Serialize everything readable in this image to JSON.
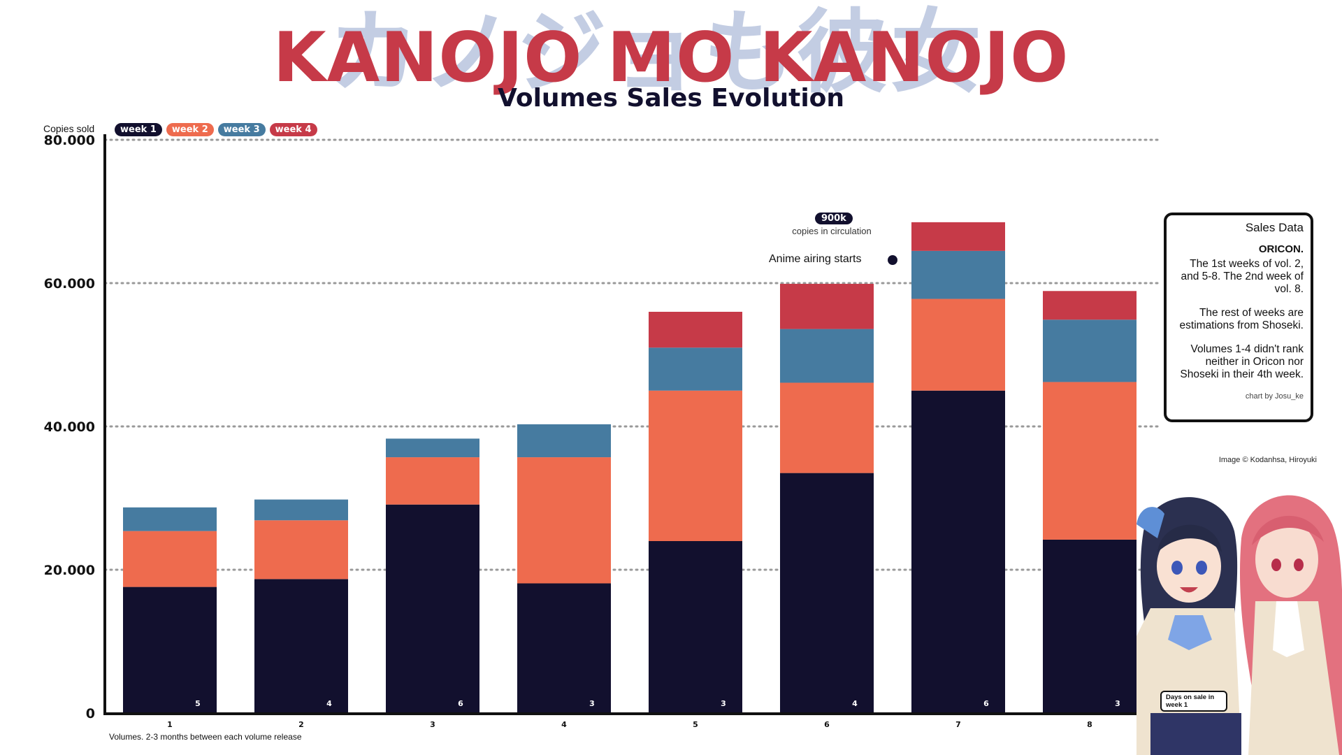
{
  "header": {
    "bg_text": "カノジョも彼女",
    "title": "KANOJO MO KANOJO",
    "subtitle": "Volumes Sales Evolution"
  },
  "axis": {
    "y_title": "Copies sold",
    "x_title": "Volumes. 2-3 months between each volume release"
  },
  "legend": [
    {
      "label": "week 1",
      "color": "#12102e"
    },
    {
      "label": "week 2",
      "color": "#ee6b4e"
    },
    {
      "label": "week 3",
      "color": "#467ba0"
    },
    {
      "label": "week 4",
      "color": "#c63a48"
    }
  ],
  "annotation": {
    "circulation_pill": "900k",
    "circulation_text": "copies in circulation",
    "anime_text": "Anime airing starts"
  },
  "info_box": {
    "heading": "Sales Data",
    "source": "ORICON.",
    "para1": "The 1st weeks of vol. 2, and 5-8. The 2nd week of vol. 8.",
    "para2": "The rest of weeks are estimations from Shoseki.",
    "para3": "Volumes 1-4 didn't rank neither in Oricon nor Shoseki in their 4th week.",
    "credit": "chart by Josu_ke"
  },
  "copyright": "Image © Kodanhsa, Hiroyuki",
  "days_note": "Days on sale in week 1",
  "chart_data": {
    "type": "bar",
    "stacked": true,
    "categories": [
      "1",
      "2",
      "3",
      "4",
      "5",
      "6",
      "7",
      "8"
    ],
    "series": [
      {
        "name": "week 1",
        "values": [
          17600,
          18700,
          29100,
          18100,
          24000,
          33500,
          45000,
          24200
        ]
      },
      {
        "name": "week 2",
        "values": [
          7800,
          8200,
          6600,
          17600,
          21000,
          12600,
          12800,
          22000
        ]
      },
      {
        "name": "week 3",
        "values": [
          3300,
          2900,
          2600,
          4600,
          6000,
          7500,
          6700,
          8700
        ]
      },
      {
        "name": "week 4",
        "values": [
          0,
          0,
          0,
          0,
          5000,
          6300,
          4000,
          4000
        ]
      }
    ],
    "days_on_sale_week1": [
      "5",
      "4",
      "6",
      "3",
      "3",
      "4",
      "6",
      "3"
    ],
    "yticks": [
      "0",
      "20.000",
      "40.000",
      "60.000",
      "80.000"
    ],
    "ylim": [
      0,
      80000
    ],
    "grid": "horizontal dotted",
    "legend_position": "top-left",
    "anime_start_volume": "6"
  }
}
